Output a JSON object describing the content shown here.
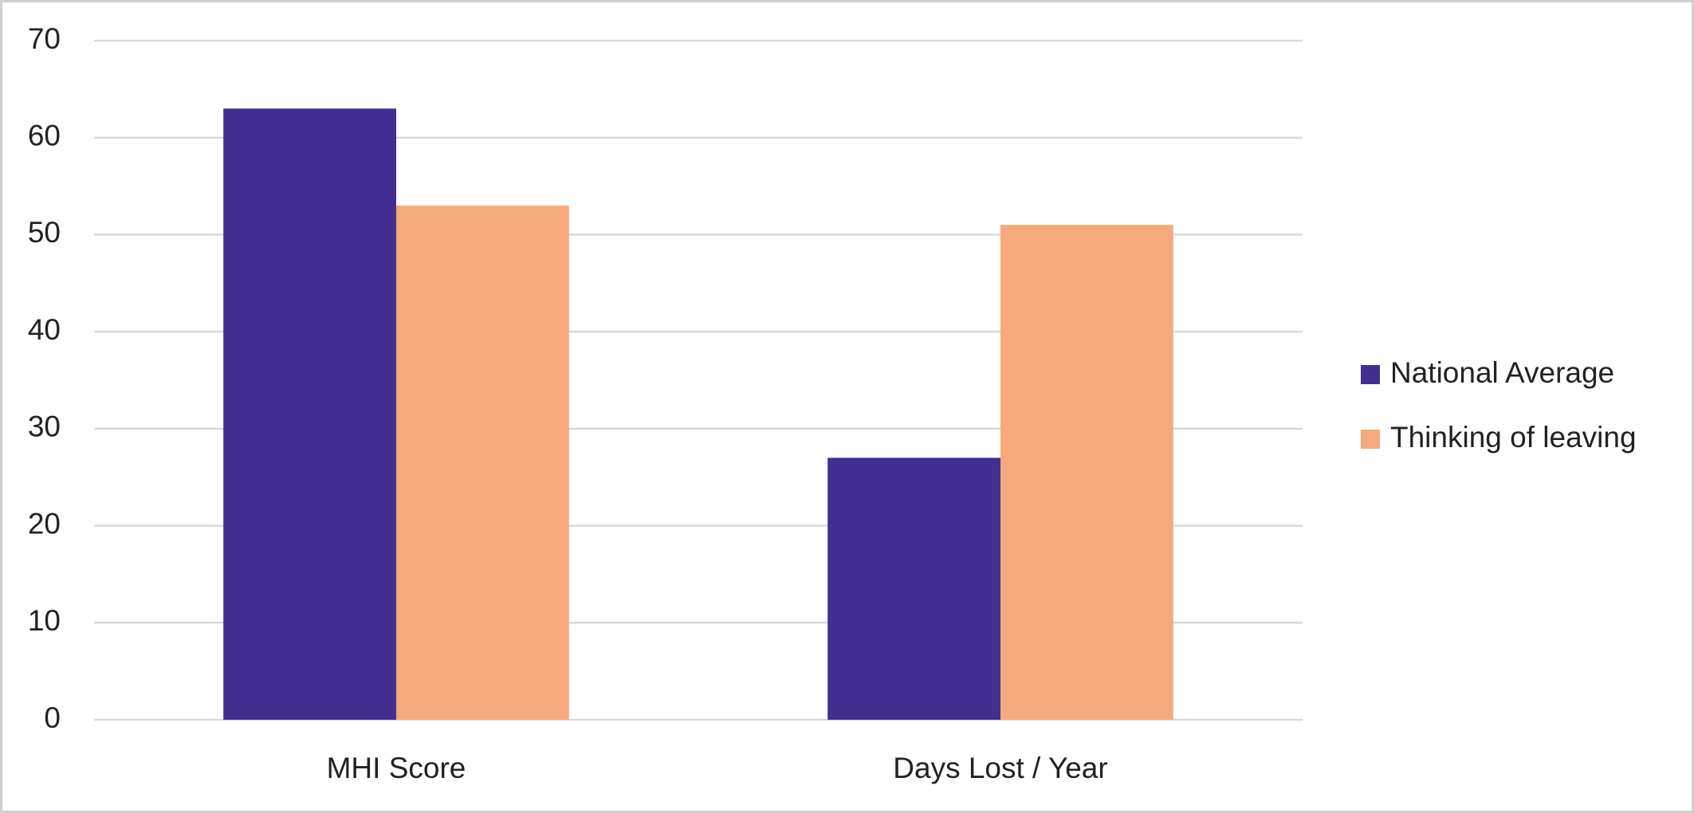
{
  "chart_data": {
    "type": "bar",
    "categories": [
      "MHI Score",
      "Days Lost / Year"
    ],
    "series": [
      {
        "name": "National Average",
        "color": "#432e91",
        "values": [
          63,
          27
        ]
      },
      {
        "name": "Thinking of leaving",
        "color": "#f6a97c",
        "values": [
          53,
          51
        ]
      }
    ],
    "ylim": [
      0,
      70
    ],
    "yticks": [
      0,
      10,
      20,
      30,
      40,
      50,
      60,
      70
    ],
    "grid": true,
    "legend": "right"
  }
}
